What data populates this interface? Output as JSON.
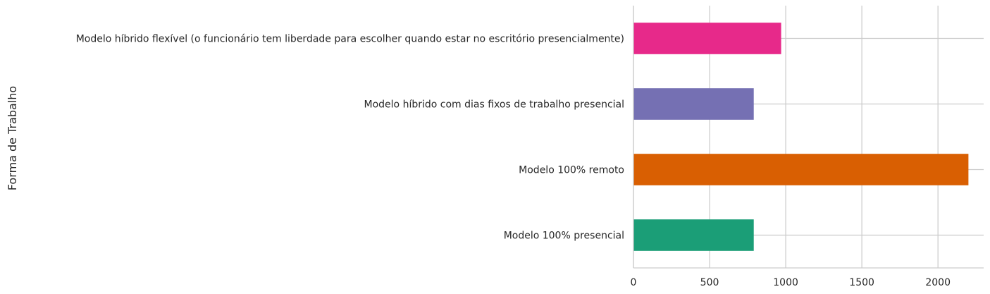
{
  "chart_data": {
    "type": "bar",
    "orientation": "horizontal",
    "categories": [
      "Modelo híbrido flexível (o funcionário tem liberdade para escolher quando estar no escritório presencialmente)",
      "Modelo híbrido com dias fixos de trabalho presencial",
      "Modelo 100% remoto",
      "Modelo 100% presencial"
    ],
    "values": [
      970,
      790,
      2200,
      790
    ],
    "colors": [
      "#e7298a",
      "#7570b3",
      "#d95f02",
      "#1b9e77"
    ],
    "xlim": [
      0,
      2300
    ],
    "xticks": [
      0,
      500,
      1000,
      1500,
      2000
    ],
    "title": "",
    "xlabel": "",
    "ylabel": "Forma de Trabalho",
    "grid": true,
    "grid_color": "#cccccc",
    "legend": "none"
  }
}
